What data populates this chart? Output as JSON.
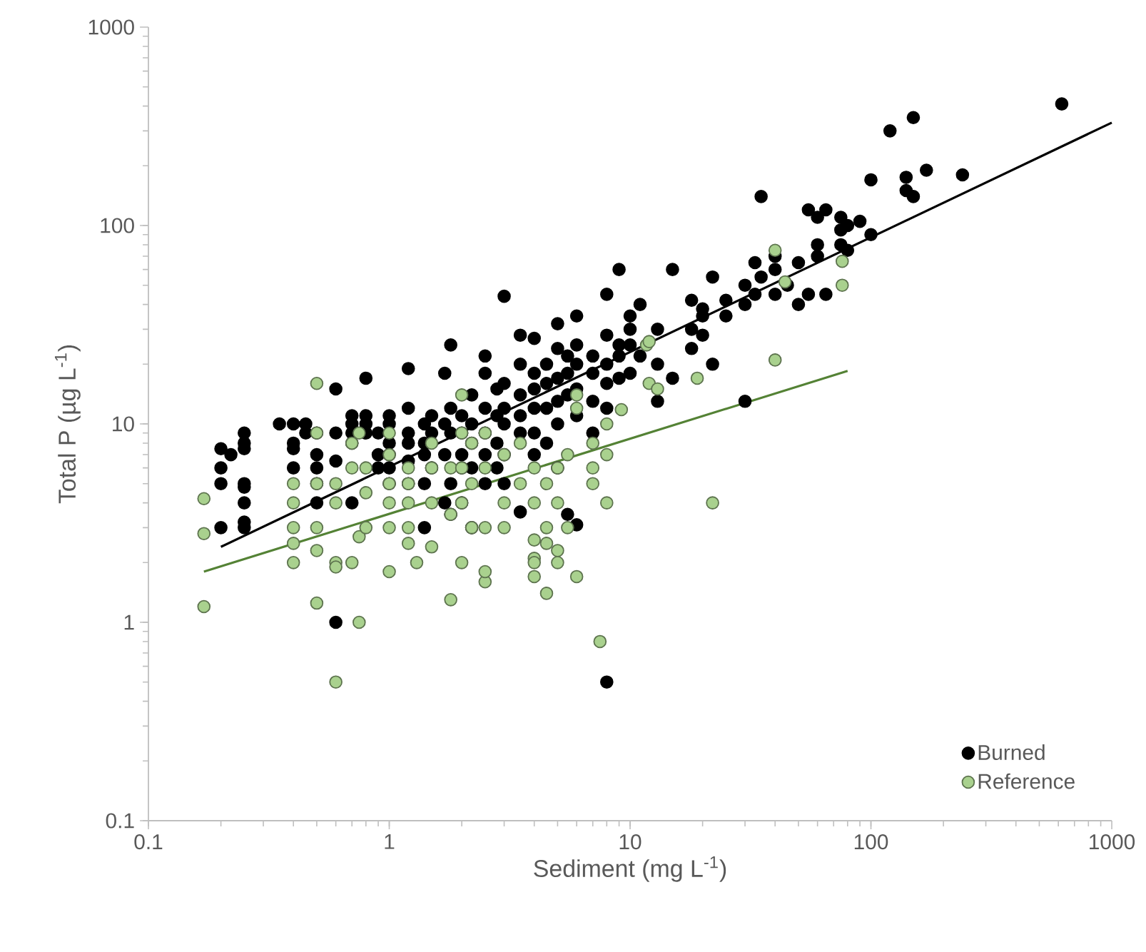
{
  "chart_data": {
    "type": "scatter",
    "xlabel": "Sediment (mg L$^{-1}$)",
    "ylabel": "Total P (µg L$^{-1}$)",
    "log": "xy",
    "xlim": [
      0.1,
      1000
    ],
    "ylim": [
      0.1,
      1000
    ],
    "xticks": [
      0.1,
      1,
      10,
      100,
      1000
    ],
    "yticks": [
      0.1,
      1,
      10,
      100,
      1000
    ],
    "grid": false,
    "legend": "bottom right",
    "marker": "circle",
    "series": [
      {
        "name": "Burned",
        "color": "#000000",
        "x": [
          0.2,
          0.2,
          0.2,
          0.2,
          0.22,
          0.25,
          0.25,
          0.25,
          0.25,
          0.25,
          0.25,
          0.25,
          0.25,
          0.35,
          0.4,
          0.4,
          0.4,
          0.4,
          0.45,
          0.45,
          0.5,
          0.5,
          0.5,
          0.5,
          0.5,
          0.6,
          0.6,
          0.6,
          0.6,
          0.7,
          0.7,
          0.7,
          0.7,
          0.7,
          0.8,
          0.8,
          0.8,
          0.8,
          0.9,
          0.9,
          0.9,
          1,
          1,
          1,
          1,
          1,
          1,
          1.2,
          1.2,
          1.2,
          1.2,
          1.2,
          1.2,
          1.4,
          1.4,
          1.4,
          1.4,
          1.4,
          1.5,
          1.5,
          1.5,
          1.7,
          1.7,
          1.7,
          1.7,
          1.8,
          1.8,
          1.8,
          1.8,
          1.8,
          2,
          2,
          2,
          2,
          2,
          2.2,
          2.2,
          2.2,
          2.2,
          2.2,
          2.5,
          2.5,
          2.5,
          2.5,
          2.5,
          2.5,
          2.8,
          2.8,
          2.8,
          2.8,
          3,
          3,
          3,
          3,
          3,
          3,
          3.5,
          3.5,
          3.5,
          3.5,
          3.5,
          3.5,
          4,
          4,
          4,
          4,
          4,
          4,
          4.5,
          4.5,
          4.5,
          4.5,
          5,
          5,
          5,
          5,
          5,
          5,
          5.5,
          5.5,
          5.5,
          5.5,
          6,
          6,
          6,
          6,
          6,
          6,
          7,
          7,
          7,
          7,
          8,
          8,
          8,
          8,
          8,
          8,
          9,
          9,
          9,
          9,
          10,
          10,
          10,
          10,
          11,
          11,
          13,
          13,
          13,
          15,
          15,
          18,
          18,
          18,
          20,
          20,
          20,
          22,
          22,
          25,
          25,
          30,
          30,
          30,
          33,
          33,
          35,
          35,
          40,
          40,
          40,
          45,
          50,
          50,
          55,
          55,
          60,
          60,
          60,
          65,
          65,
          75,
          75,
          75,
          80,
          80,
          90,
          100,
          100,
          120,
          140,
          140,
          150,
          150,
          170,
          240,
          620
        ],
        "values": [
          7.5,
          6,
          5,
          3,
          7,
          9,
          8,
          7.5,
          5,
          4.8,
          4,
          3.2,
          3,
          10,
          8,
          6,
          10,
          7.5,
          10,
          9,
          9,
          7,
          6,
          5,
          4,
          15,
          9,
          6.5,
          1,
          11,
          10,
          9,
          8,
          4,
          17,
          10,
          11,
          9,
          9,
          7,
          6,
          11,
          10,
          8,
          7,
          6,
          5,
          19,
          12,
          9,
          8,
          6.5,
          5,
          10,
          8,
          7,
          5,
          3,
          11,
          9,
          6,
          18,
          10,
          7,
          4,
          25,
          12,
          9,
          5,
          3.5,
          11,
          9,
          7,
          6,
          4,
          14,
          10,
          8,
          6,
          3,
          22,
          18,
          12,
          9,
          7,
          5,
          15,
          11,
          8,
          6,
          44,
          16,
          12,
          10,
          7,
          5,
          28,
          20,
          14,
          11,
          9,
          3.6,
          27,
          18,
          15,
          12,
          9,
          7,
          20,
          16,
          12,
          8,
          32,
          24,
          17,
          13,
          10,
          6,
          22,
          18,
          14,
          3.5,
          35,
          25,
          20,
          15,
          11,
          3.1,
          22,
          18,
          13,
          9,
          45,
          28,
          20,
          16,
          12,
          0.5,
          60,
          25,
          22,
          17,
          35,
          30,
          25,
          18,
          40,
          22,
          30,
          20,
          13,
          17,
          60,
          42,
          30,
          24,
          38,
          35,
          28,
          55,
          20,
          35,
          42,
          50,
          40,
          13,
          65,
          45,
          140,
          55,
          70,
          60,
          45,
          50,
          65,
          40,
          120,
          45,
          110,
          70,
          80,
          45,
          120,
          80,
          95,
          110,
          100,
          75,
          105,
          170,
          90,
          300,
          175,
          150,
          350,
          140,
          190,
          180,
          410
        ]
      },
      {
        "name": "Reference",
        "color": "#a9d18e",
        "x": [
          0.17,
          0.17,
          0.17,
          0.4,
          0.4,
          0.4,
          0.4,
          0.4,
          0.5,
          0.5,
          0.5,
          0.5,
          0.5,
          0.5,
          0.6,
          0.6,
          0.6,
          0.6,
          0.6,
          0.7,
          0.7,
          0.7,
          0.75,
          0.75,
          0.75,
          0.8,
          0.8,
          0.8,
          1,
          1,
          1,
          1,
          1,
          1,
          1.2,
          1.2,
          1.2,
          1.2,
          1.2,
          1.3,
          1.5,
          1.5,
          1.5,
          1.5,
          1.8,
          1.8,
          1.8,
          2,
          2,
          2,
          2,
          2,
          2.2,
          2.2,
          2.2,
          2.5,
          2.5,
          2.5,
          2.5,
          2.5,
          3,
          3,
          3,
          3.5,
          3.5,
          4,
          4,
          4,
          4,
          4,
          4,
          4.5,
          4.5,
          4.5,
          4.5,
          5,
          5,
          5,
          5,
          5.5,
          5.5,
          6,
          6,
          6,
          7,
          7,
          7,
          7.5,
          8,
          8,
          8,
          9.2,
          11.7,
          12,
          12,
          13,
          19,
          22,
          40,
          40,
          44,
          76,
          76
        ],
        "values": [
          4.2,
          2.8,
          1.2,
          5,
          4,
          3,
          2.5,
          2,
          16,
          9,
          5,
          3,
          2.3,
          1.25,
          5,
          4,
          2,
          1.9,
          0.5,
          8,
          6,
          2,
          9,
          2.7,
          1,
          6,
          4.5,
          3,
          9,
          7,
          5,
          4,
          3,
          1.8,
          6,
          5,
          4,
          3,
          2.5,
          2,
          8,
          6,
          4,
          2.4,
          1.3,
          3.5,
          6,
          14,
          9,
          6,
          4,
          2,
          8,
          5,
          3,
          9,
          6,
          3,
          1.6,
          1.8,
          7,
          4,
          3,
          8,
          5,
          6,
          4,
          2.6,
          2.1,
          1.7,
          2,
          5,
          3,
          2.5,
          1.4,
          6,
          4,
          2.3,
          2,
          7,
          3,
          14,
          12,
          1.7,
          8,
          5,
          6,
          0.8,
          10,
          7,
          4,
          11.8,
          25,
          16,
          26,
          15,
          17,
          4,
          75,
          21,
          52,
          66,
          50
        ]
      },
      {
        "type": "line",
        "marker": "none",
        "color": "#000000",
        "x": [
          0.2,
          1000
        ],
        "values": [
          2.4,
          330
        ]
      },
      {
        "type": "line",
        "marker": "none",
        "color": "#548235",
        "x": [
          0.17,
          80
        ],
        "values": [
          1.8,
          18.5
        ]
      }
    ]
  }
}
